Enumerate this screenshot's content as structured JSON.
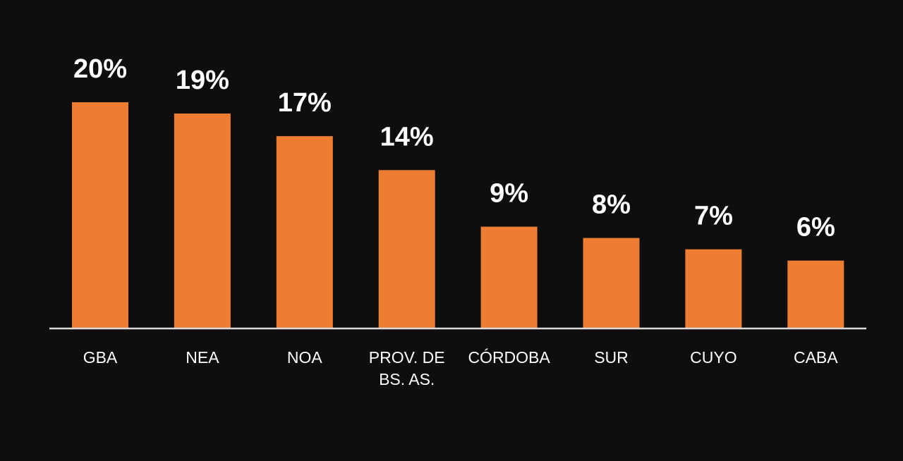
{
  "chart_data": {
    "type": "bar",
    "title": "",
    "xlabel": "",
    "ylabel": "",
    "categories": [
      "GBA",
      "NEA",
      "NOA",
      "PROV. DE BS. AS.",
      "CÓRDOBA",
      "SUR",
      "CUYO",
      "CABA"
    ],
    "category_lines": [
      [
        "GBA"
      ],
      [
        "NEA"
      ],
      [
        "NOA"
      ],
      [
        "PROV. DE",
        "BS. AS."
      ],
      [
        "CÓRDOBA"
      ],
      [
        "SUR"
      ],
      [
        "CUYO"
      ],
      [
        "CABA"
      ]
    ],
    "values": [
      20,
      19,
      17,
      14,
      9,
      8,
      7,
      6
    ],
    "data_labels": [
      "20%",
      "19%",
      "17%",
      "14%",
      "9%",
      "8%",
      "7%",
      "6%"
    ],
    "ylim": [
      0,
      20
    ],
    "grid": false,
    "legend": "none",
    "colors": {
      "bar": "#ED7D31",
      "background": "#0e0e0e",
      "axis": "#d9d9d9",
      "text": "#ffffff"
    }
  }
}
